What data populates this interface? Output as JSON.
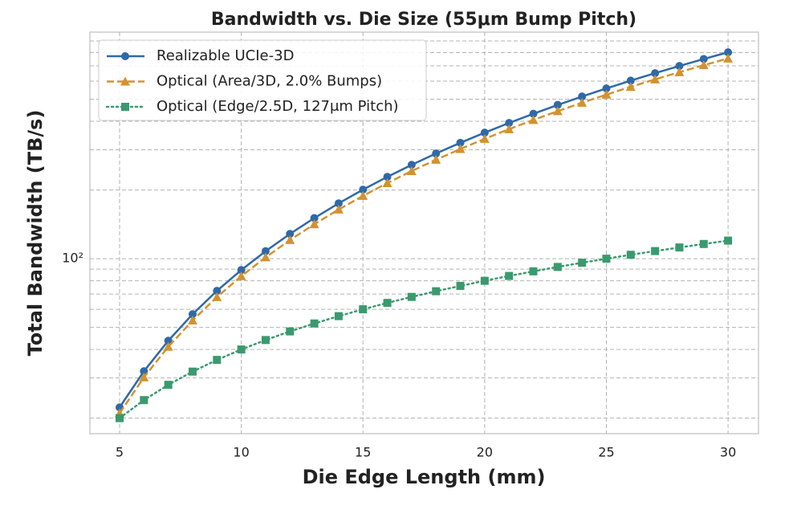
{
  "chart_data": {
    "type": "line",
    "title": "Bandwidth vs. Die Size (55μm Bump Pitch)",
    "xlabel": "Die Edge Length (mm)",
    "ylabel": "Total Bandwidth (TB/s)",
    "x": [
      5,
      6,
      7,
      8,
      9,
      10,
      11,
      12,
      13,
      14,
      15,
      16,
      17,
      18,
      19,
      20,
      21,
      22,
      23,
      24,
      25,
      26,
      27,
      28,
      29,
      30
    ],
    "series": [
      {
        "name": "Realizable UCIe-3D",
        "color": "#2f69a8",
        "marker": "circle",
        "linestyle": "solid",
        "values": [
          22.3,
          32.1,
          43.7,
          57.1,
          72.3,
          89.2,
          107.9,
          128.4,
          150.7,
          174.8,
          200.7,
          228.4,
          257.8,
          289.0,
          322.0,
          356.8,
          393.4,
          431.7,
          471.9,
          513.8,
          557.5,
          603.0,
          650.3,
          699.3,
          750.2,
          802.8
        ]
      },
      {
        "name": "Optical (Area/3D, 2.0% Bumps)",
        "color": "#d4922e",
        "marker": "triangle",
        "linestyle": "dashed",
        "values": [
          21.0,
          30.2,
          41.1,
          53.6,
          67.9,
          83.8,
          101.4,
          120.7,
          141.6,
          164.2,
          188.6,
          214.5,
          242.2,
          271.5,
          302.5,
          335.2,
          369.6,
          405.6,
          443.3,
          482.7,
          523.8,
          566.5,
          610.9,
          657.0,
          704.8,
          754.2
        ]
      },
      {
        "name": "Optical (Edge/2.5D, 127μm Pitch)",
        "color": "#3a9a6e",
        "marker": "square",
        "linestyle": "dotted",
        "values": [
          20,
          24,
          28,
          32,
          36,
          40,
          44,
          48,
          52,
          56,
          60,
          64,
          68,
          72,
          76,
          80,
          84,
          88,
          92,
          96,
          100,
          104,
          108,
          112,
          116,
          120
        ]
      }
    ],
    "xlim": [
      3.78,
      31.25
    ],
    "xticks": [
      5,
      10,
      15,
      20,
      25,
      30
    ],
    "ylim": [
      17.1,
      984
    ],
    "ylog": true,
    "yticks": [
      {
        "value": 100,
        "label": "10²"
      }
    ],
    "minor_yticks": [
      20,
      30,
      40,
      50,
      60,
      70,
      80,
      90,
      200,
      300,
      400,
      500,
      600,
      700,
      800,
      900
    ],
    "grid": true,
    "legend": "upper left"
  }
}
